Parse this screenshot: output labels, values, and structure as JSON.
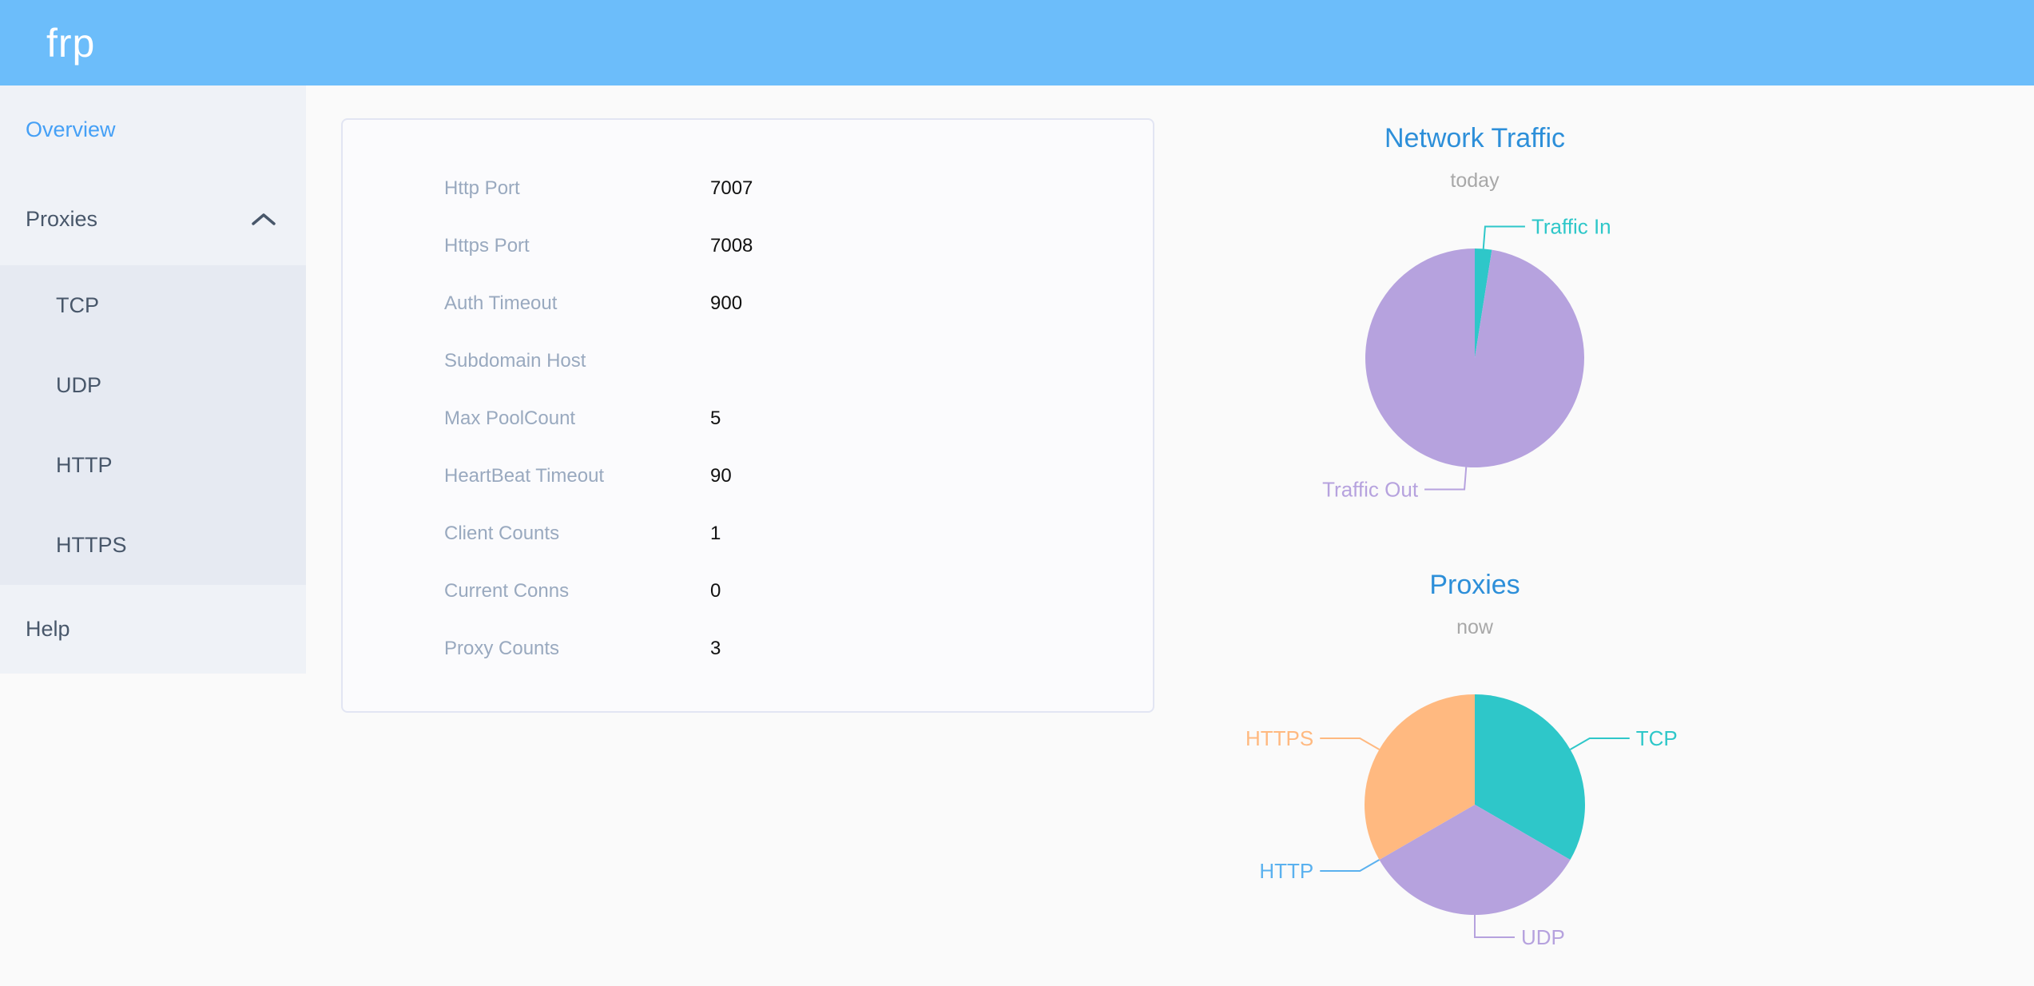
{
  "header": {
    "logo": "frp"
  },
  "sidebar": {
    "overview": "Overview",
    "proxies": "Proxies",
    "proxies_children": [
      "TCP",
      "UDP",
      "HTTP",
      "HTTPS"
    ],
    "help": "Help"
  },
  "overview_card": {
    "rows": [
      {
        "label": "Http Port",
        "value": "7007"
      },
      {
        "label": "Https Port",
        "value": "7008"
      },
      {
        "label": "Auth Timeout",
        "value": "900"
      },
      {
        "label": "Subdomain Host",
        "value": ""
      },
      {
        "label": "Max PoolCount",
        "value": "5"
      },
      {
        "label": "HeartBeat Timeout",
        "value": "90"
      },
      {
        "label": "Client Counts",
        "value": "1"
      },
      {
        "label": "Current Conns",
        "value": "0"
      },
      {
        "label": "Proxy Counts",
        "value": "3"
      }
    ]
  },
  "chart_data": [
    {
      "type": "pie",
      "title": "Network Traffic",
      "subtitle": "today",
      "unit": "% (estimated from slice angles)",
      "label_position": "outside",
      "legend": "none",
      "series": [
        {
          "name": "Traffic In",
          "value": 2.5,
          "color": "#2EC7C9"
        },
        {
          "name": "Traffic Out",
          "value": 97.5,
          "color": "#B6A2DE"
        }
      ]
    },
    {
      "type": "pie",
      "title": "Proxies",
      "subtitle": "now",
      "unit": "proxy count",
      "label_position": "outside",
      "legend": "none",
      "series": [
        {
          "name": "TCP",
          "value": 1,
          "color": "#2EC7C9"
        },
        {
          "name": "UDP",
          "value": 1,
          "color": "#B6A2DE"
        },
        {
          "name": "HTTP",
          "value": 0,
          "color": "#5AB1EF"
        },
        {
          "name": "HTTPS",
          "value": 1,
          "color": "#FFB980"
        }
      ]
    }
  ],
  "colors": {
    "page-bg": "#FAFAFA",
    "header-bg": "#6CBDFA",
    "sidebar-bg": "#EFF2F7",
    "submenu-bg": "#E6EAF2",
    "sidebar-text": "#48576A",
    "active-link": "#45A0F6",
    "card-border": "#E2E5F3",
    "config-label": "#99A9BF",
    "config-value": "#111111",
    "chart-title": "#2D8FD9",
    "chart-subtitle": "#A8A8A8"
  }
}
